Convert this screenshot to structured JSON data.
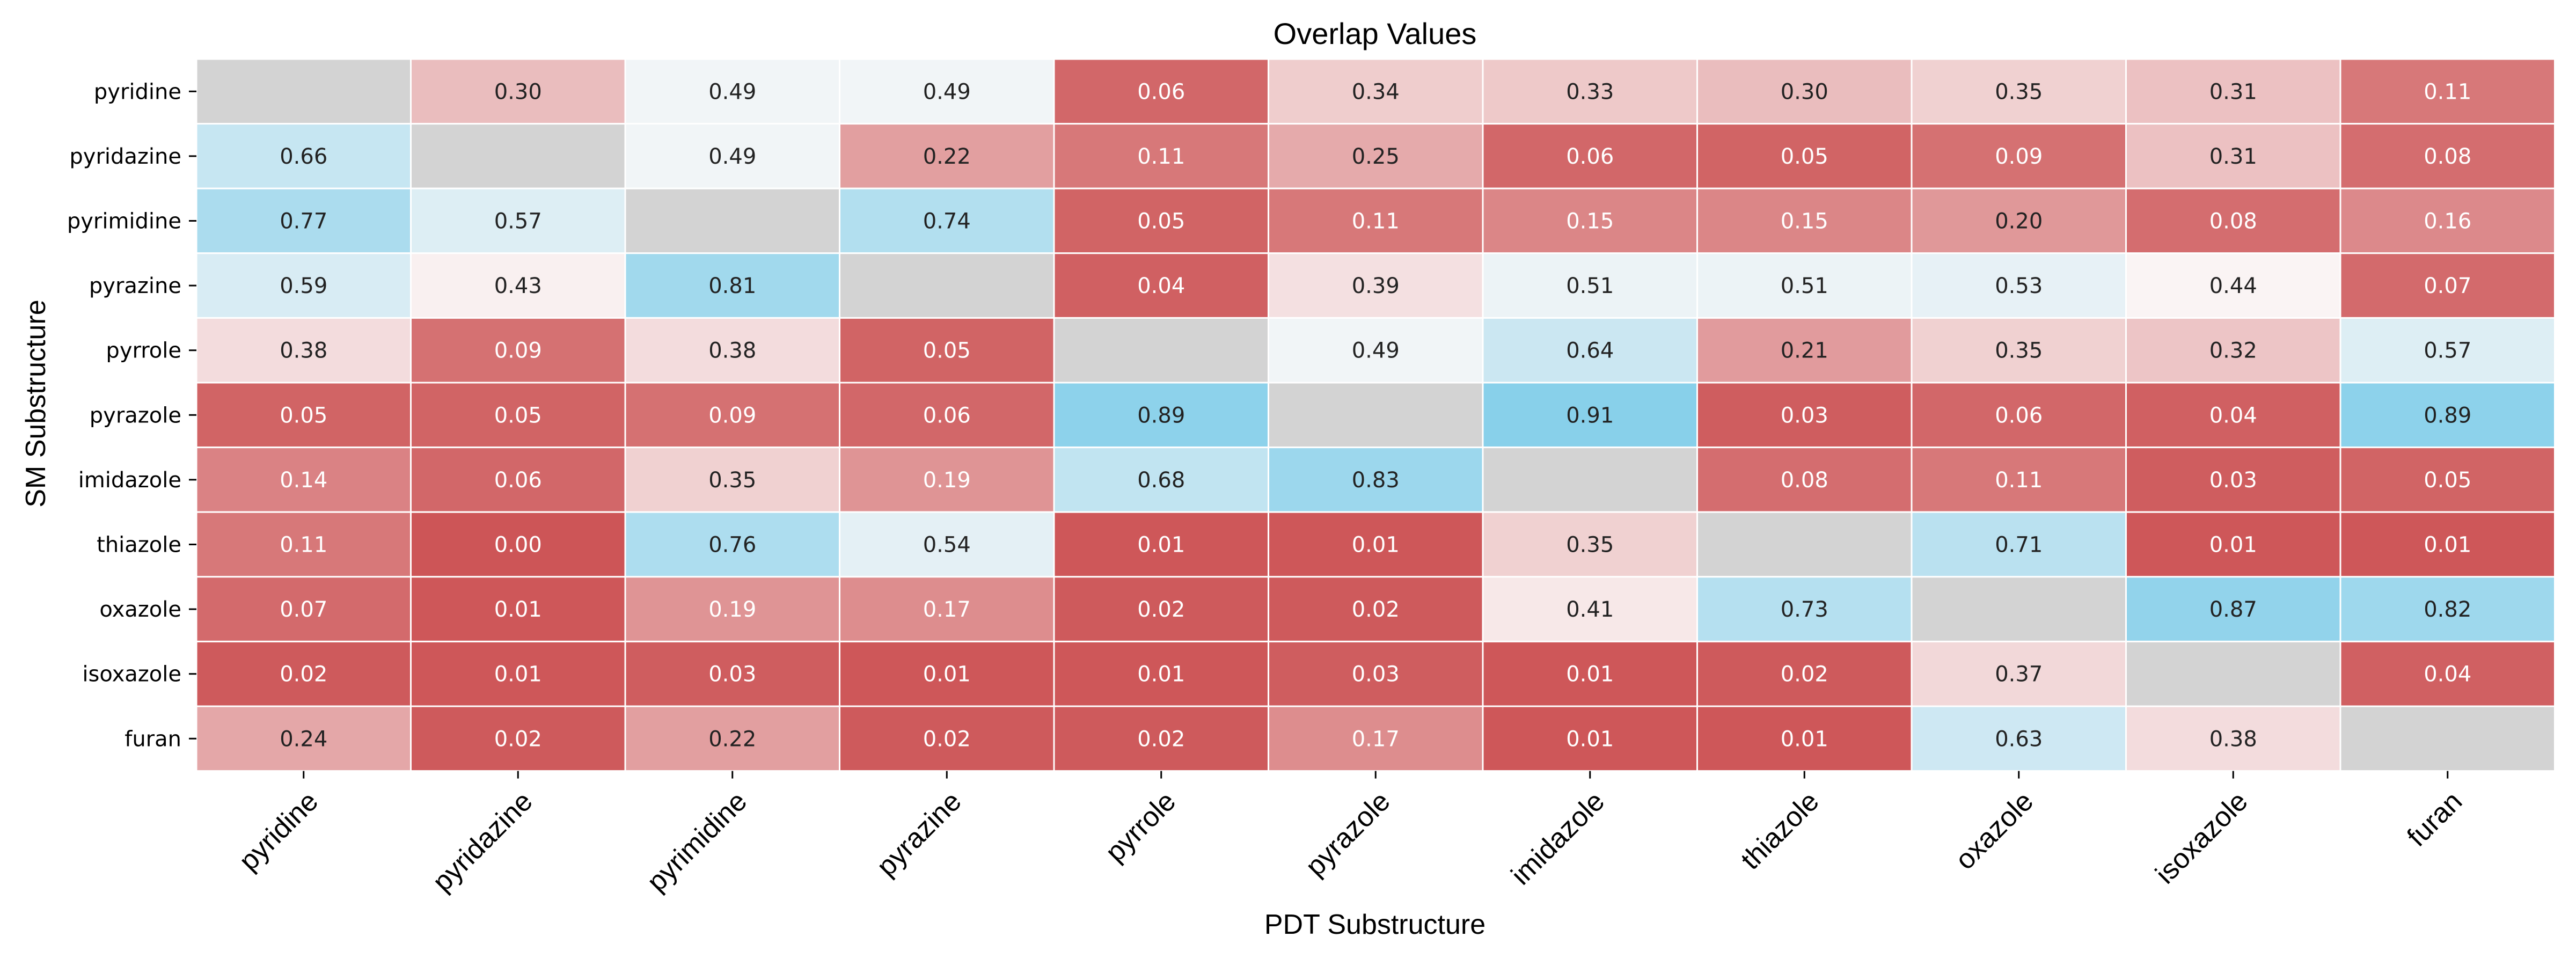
{
  "chart_data": {
    "type": "heatmap",
    "title": "Overlap Values",
    "xlabel": "PDT Substructure",
    "ylabel": "SM Substructure",
    "rows": [
      "pyridine",
      "pyridazine",
      "pyrimidine",
      "pyrazine",
      "pyrrole",
      "pyrazole",
      "imidazole",
      "thiazole",
      "oxazole",
      "isoxazole",
      "furan"
    ],
    "columns": [
      "pyridine",
      "pyridazine",
      "pyrimidine",
      "pyrazine",
      "pyrrole",
      "pyrazole",
      "imidazole",
      "thiazole",
      "oxazole",
      "isoxazole",
      "furan"
    ],
    "values": [
      [
        null,
        0.3,
        0.49,
        0.49,
        0.06,
        0.34,
        0.33,
        0.3,
        0.35,
        0.31,
        0.11
      ],
      [
        0.66,
        null,
        0.49,
        0.22,
        0.11,
        0.25,
        0.06,
        0.05,
        0.09,
        0.31,
        0.08
      ],
      [
        0.77,
        0.57,
        null,
        0.74,
        0.05,
        0.11,
        0.15,
        0.15,
        0.2,
        0.08,
        0.16
      ],
      [
        0.59,
        0.43,
        0.81,
        null,
        0.04,
        0.39,
        0.51,
        0.51,
        0.53,
        0.44,
        0.07
      ],
      [
        0.38,
        0.09,
        0.38,
        0.05,
        null,
        0.49,
        0.64,
        0.21,
        0.35,
        0.32,
        0.57
      ],
      [
        0.05,
        0.05,
        0.09,
        0.06,
        0.89,
        null,
        0.91,
        0.03,
        0.06,
        0.04,
        0.89
      ],
      [
        0.14,
        0.06,
        0.35,
        0.19,
        0.68,
        0.83,
        null,
        0.08,
        0.11,
        0.03,
        0.05
      ],
      [
        0.11,
        0.0,
        0.76,
        0.54,
        0.01,
        0.01,
        0.35,
        null,
        0.71,
        0.01,
        0.01
      ],
      [
        0.07,
        0.01,
        0.19,
        0.17,
        0.02,
        0.02,
        0.41,
        0.73,
        null,
        0.87,
        0.82
      ],
      [
        0.02,
        0.01,
        0.03,
        0.01,
        0.01,
        0.03,
        0.01,
        0.02,
        0.37,
        null,
        0.04
      ],
      [
        0.24,
        0.02,
        0.22,
        0.02,
        0.02,
        0.17,
        0.01,
        0.01,
        0.63,
        0.38,
        null
      ]
    ],
    "value_range": [
      0,
      1
    ],
    "colors": {
      "low": "#cd5557",
      "mid": "#fbf8f8",
      "high": "#85cfea",
      "diagonal": "#d3d3d3",
      "cell_border": "#ffffff",
      "text_dark": "#222222",
      "text_light": "#ffffff"
    },
    "colorbar": false,
    "grid": false
  }
}
